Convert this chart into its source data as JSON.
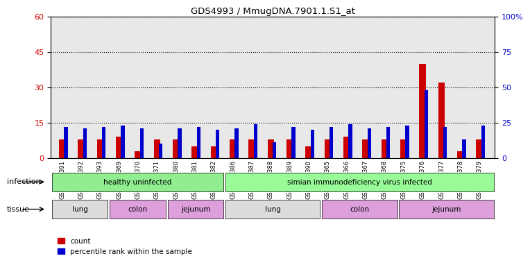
{
  "title": "GDS4993 / MmugDNA.7901.1.S1_at",
  "samples": [
    "GSM1249391",
    "GSM1249392",
    "GSM1249393",
    "GSM1249369",
    "GSM1249370",
    "GSM1249371",
    "GSM1249380",
    "GSM1249381",
    "GSM1249382",
    "GSM1249386",
    "GSM1249387",
    "GSM1249388",
    "GSM1249389",
    "GSM1249390",
    "GSM1249365",
    "GSM1249366",
    "GSM1249367",
    "GSM1249368",
    "GSM1249375",
    "GSM1249376",
    "GSM1249377",
    "GSM1249378",
    "GSM1249379"
  ],
  "red_values": [
    8,
    8,
    8,
    9,
    3,
    8,
    8,
    5,
    5,
    8,
    8,
    8,
    8,
    5,
    8,
    9,
    8,
    8,
    8,
    40,
    32,
    3,
    8
  ],
  "blue_values": [
    22,
    21,
    22,
    23,
    21,
    10,
    21,
    22,
    20,
    21,
    24,
    11,
    22,
    20,
    22,
    24,
    21,
    22,
    23,
    48,
    22,
    13,
    23
  ],
  "ylim_left": [
    0,
    60
  ],
  "ylim_right": [
    0,
    100
  ],
  "yticks_left": [
    0,
    15,
    30,
    45,
    60
  ],
  "yticks_right": [
    0,
    25,
    50,
    75,
    100
  ],
  "ytick_labels_right": [
    "0",
    "25",
    "50",
    "75",
    "100%"
  ],
  "infection_groups": [
    {
      "label": "healthy uninfected",
      "start": 0,
      "end": 9,
      "color": "#90EE90"
    },
    {
      "label": "simian immunodeficiency virus infected",
      "start": 9,
      "end": 23,
      "color": "#98FB98"
    }
  ],
  "tissue_groups": [
    {
      "label": "lung",
      "start": 0,
      "end": 3,
      "color": "#DCDCDC"
    },
    {
      "label": "colon",
      "start": 3,
      "end": 6,
      "color": "#DDA0DD"
    },
    {
      "label": "jejunum",
      "start": 6,
      "end": 9,
      "color": "#DDA0DD"
    },
    {
      "label": "lung",
      "start": 9,
      "end": 14,
      "color": "#DCDCDC"
    },
    {
      "label": "colon",
      "start": 14,
      "end": 18,
      "color": "#DDA0DD"
    },
    {
      "label": "jejunum",
      "start": 18,
      "end": 23,
      "color": "#DDA0DD"
    }
  ],
  "bar_width": 0.35,
  "red_color": "#CC0000",
  "blue_color": "#0000CC",
  "grid_color": "#000000",
  "bg_color": "#E8E8E8",
  "infection_label": "infection",
  "tissue_label": "tissue",
  "legend_count": "count",
  "legend_percentile": "percentile rank within the sample"
}
